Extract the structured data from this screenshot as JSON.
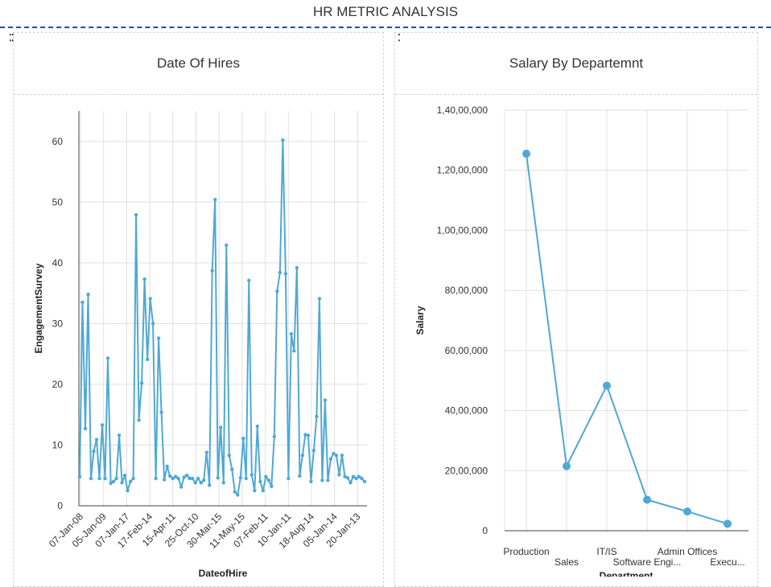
{
  "dashboard": {
    "title": "HR METRIC ANALYSIS"
  },
  "colors": {
    "series": "#4fa8d7",
    "grid": "#e0e0e0",
    "axis": "#666666",
    "title_rule": "#1f4e9c"
  },
  "chart_data": [
    {
      "type": "line",
      "title": "Date Of Hires",
      "xlabel": "DateofHire",
      "ylabel": "EngagementSurvey",
      "ylim": [
        0,
        65
      ],
      "yticks": [
        0,
        10,
        20,
        30,
        40,
        50,
        60
      ],
      "xtick_labels": [
        "07-Jan-08",
        "05-Jan-09",
        "07-Jan-17",
        "17-Feb-14",
        "15-Apr-11",
        "25-Oct-10",
        "30-Mar-15",
        "11-May-15",
        "07-Feb-11",
        "10-Jan-11",
        "18-Aug-14",
        "05-Jan-14",
        "20-Jan-13"
      ],
      "grid": true,
      "values": [
        4.8,
        33.5,
        12.7,
        34.8,
        4.5,
        9.0,
        10.9,
        4.5,
        13.3,
        4.5,
        24.3,
        3.7,
        4.0,
        4.5,
        11.6,
        3.8,
        5.0,
        2.5,
        4.0,
        4.5,
        47.9,
        14.1,
        20.2,
        37.3,
        24.1,
        34.1,
        30.0,
        4.5,
        27.6,
        15.4,
        4.3,
        6.5,
        4.9,
        4.5,
        4.8,
        4.5,
        3.1,
        4.7,
        5.0,
        4.5,
        4.5,
        3.8,
        4.5,
        3.8,
        4.2,
        8.8,
        3.4,
        38.7,
        50.4,
        4.6,
        12.9,
        3.8,
        42.9,
        8.3,
        6.0,
        2.3,
        1.8,
        4.6,
        11.1,
        4.5,
        37.1,
        5.1,
        2.5,
        13.1,
        4.0,
        2.5,
        4.8,
        4.2,
        3.2,
        11.4,
        35.3,
        38.4,
        60.2,
        38.2,
        4.5,
        28.3,
        25.5,
        39.2,
        4.9,
        8.3,
        11.7,
        11.6,
        4.0,
        9.1,
        14.7,
        34.1,
        4.2,
        17.4,
        4.2,
        7.7,
        8.6,
        8.3,
        5.1,
        8.3,
        4.8,
        4.6,
        3.8,
        4.8,
        4.5,
        4.8,
        4.5,
        4.0
      ]
    },
    {
      "type": "line",
      "title": "Salary By Departemnt",
      "xlabel": "Department",
      "ylabel": "Salary",
      "ylim": [
        0,
        14000000
      ],
      "ytick_values": [
        0,
        2000000,
        4000000,
        6000000,
        8000000,
        10000000,
        12000000,
        14000000
      ],
      "ytick_labels": [
        "0",
        "20,00,000",
        "40,00,000",
        "60,00,000",
        "80,00,000",
        "1,00,00,000",
        "1,20,00,000",
        "1,40,00,000"
      ],
      "grid": true,
      "categories": [
        "Production",
        "Sales",
        "IT/IS",
        "Software Engi...",
        "Admin Offices",
        "Execu..."
      ],
      "values": [
        12550000,
        2150000,
        4830000,
        1030000,
        640000,
        230000
      ]
    }
  ]
}
